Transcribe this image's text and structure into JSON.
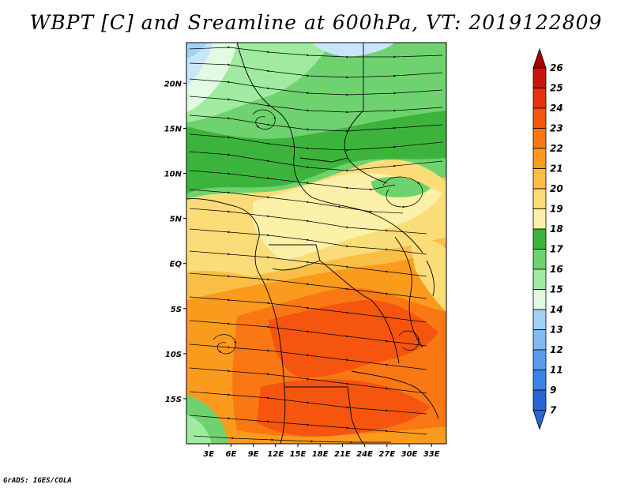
{
  "title": "WBPT [C] and Sreamline at 600hPa, VT: 2019122809",
  "footer": "GrADS: IGES/COLA",
  "map": {
    "lat_ticks": [
      {
        "lat": 20,
        "label": "20N"
      },
      {
        "lat": 15,
        "label": "15N"
      },
      {
        "lat": 10,
        "label": "10N"
      },
      {
        "lat": 5,
        "label": "5N"
      },
      {
        "lat": 0,
        "label": "EQ"
      },
      {
        "lat": -5,
        "label": "5S"
      },
      {
        "lat": -10,
        "label": "10S"
      },
      {
        "lat": -15,
        "label": "15S"
      }
    ],
    "lon_ticks": [
      {
        "lon": 3,
        "label": "3E"
      },
      {
        "lon": 6,
        "label": "6E"
      },
      {
        "lon": 9,
        "label": "9E"
      },
      {
        "lon": 12,
        "label": "12E"
      },
      {
        "lon": 15,
        "label": "15E"
      },
      {
        "lon": 18,
        "label": "18E"
      },
      {
        "lon": 21,
        "label": "21E"
      },
      {
        "lon": 24,
        "label": "24E"
      },
      {
        "lon": 27,
        "label": "27E"
      },
      {
        "lon": 30,
        "label": "30E"
      },
      {
        "lon": 33,
        "label": "33E"
      }
    ],
    "lon_range": [
      0,
      35
    ],
    "lat_range": [
      -20,
      24.5
    ]
  },
  "colorbar": {
    "labels": [
      "26",
      "25",
      "24",
      "23",
      "22",
      "21",
      "20",
      "19",
      "18",
      "17",
      "16",
      "15",
      "14",
      "13",
      "12",
      "11",
      "9",
      "7"
    ],
    "colors": [
      "#a50000",
      "#c8140a",
      "#e6320f",
      "#f5550f",
      "#fa7814",
      "#fa9b1e",
      "#fabe46",
      "#fadc78",
      "#faf0a8",
      "#3cb43c",
      "#6ed26e",
      "#a0eba0",
      "#e1fae1",
      "#a0d2f5",
      "#82b9f0",
      "#5a9beb",
      "#3c82e6",
      "#2864d2"
    ]
  },
  "palette": {
    "lt7": "#2864d2",
    "c7_9": "#3c82e6",
    "c9_11": "#5a9beb",
    "c11_12": "#82b9f0",
    "c12_13": "#a0d2f5",
    "c13_14": "#c8e6fa",
    "c14_15": "#e1fae1",
    "c15_16": "#a0eba0",
    "c16_17": "#6ed26e",
    "c17_18": "#3cb43c",
    "c18_19": "#faf0a8",
    "c19_20": "#fadc78",
    "c20_21": "#fabe46",
    "c21_22": "#fa9b1e",
    "c22_23": "#fa7814",
    "c23_24": "#f5550f",
    "c24_25": "#e6320f",
    "c25_26": "#c8140a",
    "gt26": "#a50000"
  }
}
